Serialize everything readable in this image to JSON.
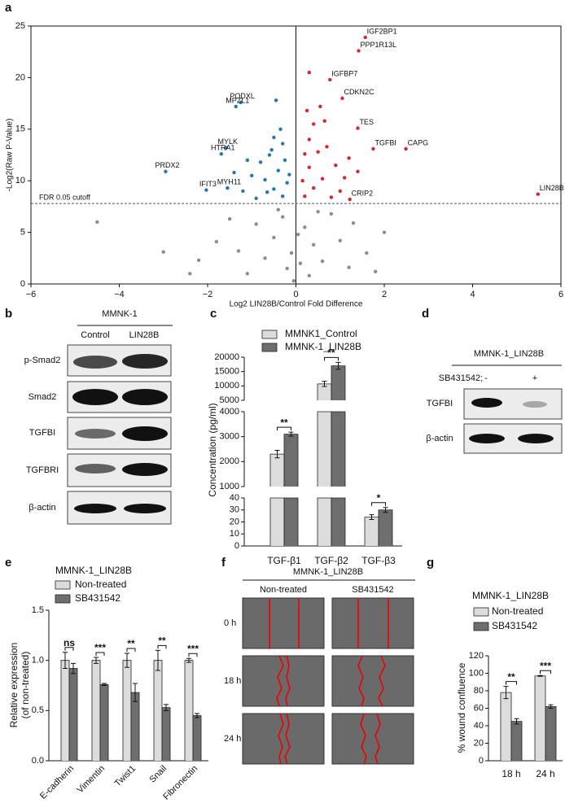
{
  "panel_labels": [
    "a",
    "b",
    "c",
    "d",
    "e",
    "f",
    "g"
  ],
  "western_b": {
    "title": "MMNK-1",
    "lanes": [
      "Control",
      "LIN28B"
    ],
    "rows": [
      "p-Smad2",
      "Smad2",
      "TGFBI",
      "TGFBRI",
      "β-actin"
    ]
  },
  "western_d": {
    "title": "MMNK-1_LIN28B",
    "treatment": "SB431542;",
    "lanes": [
      "-",
      "+"
    ],
    "rows": [
      "TGFBI",
      "β-actin"
    ]
  },
  "wound_f": {
    "title": "MMNK-1_LIN28B",
    "columns": [
      "Non-treated",
      "SB431542"
    ],
    "rows": [
      "0 h",
      "18 h",
      "24 h"
    ]
  },
  "chart_data": [
    {
      "type": "scatter",
      "xlabel": "Log2 LIN28B/Control Fold Difference",
      "ylabel": "-Log2(Raw P-Value)",
      "xlim": [
        -6,
        6
      ],
      "ylim": [
        0,
        25
      ],
      "xticks": [
        {
          "value": -6,
          "label": "−6"
        },
        {
          "value": -4,
          "label": "−4"
        },
        {
          "value": -2,
          "label": "−2"
        },
        0,
        2,
        4,
        6
      ],
      "yticks": [
        0,
        5,
        10,
        15,
        20,
        25
      ],
      "cutoff": {
        "value": 7.8,
        "label": "FDR 0.05 cutoff"
      },
      "series": [
        {
          "color": "#8c8c8c",
          "x": [
            -4.5,
            -2.4,
            -2.2,
            -3.0,
            1.8,
            1.6,
            -1.3,
            1.0,
            -0.3,
            0.2,
            -0.1,
            0.1,
            -0.5,
            0.4,
            -0.2,
            0.3,
            -0.7,
            0.6,
            -0.9,
            0.8,
            -0.4,
            0.5,
            -1.5,
            1.3,
            -0.05,
            0.05,
            -1.1,
            1.2,
            -1.8,
            2.0
          ],
          "values": [
            6.0,
            1.0,
            2.3,
            3.1,
            1.2,
            3.0,
            3.2,
            4.2,
            6.5,
            5.5,
            3.0,
            2.0,
            4.5,
            3.8,
            1.5,
            0.8,
            2.5,
            2.2,
            5.8,
            6.8,
            7.2,
            7.0,
            6.3,
            5.9,
            0.3,
            4.8,
            1.0,
            1.6,
            4.1,
            5.0
          ],
          "point_labels": null
        },
        {
          "color": "#1f77b4",
          "x": [
            -1.25,
            -1.36,
            -1.58,
            -1.69,
            -2.95,
            -2.03,
            -1.55,
            -0.3,
            -0.5,
            -0.7,
            -0.4,
            -0.9,
            -0.2,
            -0.6,
            -0.3,
            -0.8,
            -1.0,
            -0.5,
            -0.35,
            -0.45,
            -1.1,
            -0.25,
            -1.2,
            -0.65,
            -0.15,
            -1.4,
            -0.55
          ],
          "values": [
            17.6,
            17.2,
            13.2,
            12.6,
            10.9,
            9.1,
            9.3,
            8.5,
            9.2,
            10.1,
            11.0,
            8.3,
            9.8,
            12.5,
            13.6,
            11.8,
            10.5,
            14.2,
            15.0,
            17.8,
            12.0,
            12.0,
            9.0,
            8.9,
            10.6,
            10.8,
            13.0
          ],
          "point_labels": [
            "PODXL",
            "MPZL1",
            "MYLK",
            "HTRA1",
            "PRDX2",
            "IFIT3",
            "MYH11",
            null,
            null,
            null,
            null,
            null,
            null,
            null,
            null,
            null,
            null,
            null,
            null,
            null,
            null,
            null,
            null,
            null,
            null,
            null,
            null
          ]
        },
        {
          "color": "#d62728",
          "x": [
            1.57,
            1.42,
            0.77,
            1.05,
            1.4,
            1.75,
            2.49,
            5.48,
            1.22,
            0.2,
            0.4,
            0.6,
            0.3,
            0.8,
            0.15,
            0.5,
            0.3,
            0.9,
            1.1,
            0.4,
            0.25,
            0.3,
            0.7,
            1.2,
            0.55,
            1.0,
            0.2,
            0.65,
            1.4
          ],
          "values": [
            23.9,
            22.6,
            19.8,
            18.0,
            15.1,
            13.1,
            13.1,
            8.7,
            8.2,
            8.5,
            9.3,
            10.2,
            11.3,
            8.4,
            10.0,
            12.8,
            14.0,
            11.5,
            10.3,
            15.5,
            16.8,
            20.5,
            13.3,
            12.2,
            17.2,
            9.0,
            12.6,
            15.8,
            10.9
          ],
          "point_labels": [
            "IGF2BP1",
            "PPP1R13L",
            "IGFBP7",
            "CDKN2C",
            "TES",
            "TGFBI",
            "CAPG",
            "LIN28B",
            "CRIP2",
            null,
            null,
            null,
            null,
            null,
            null,
            null,
            null,
            null,
            null,
            null,
            null,
            null,
            null,
            null,
            null,
            null,
            null,
            null,
            null
          ]
        }
      ]
    },
    {
      "type": "bar",
      "ylabel": "Concentration (pg/ml)",
      "categories": [
        "TGF-β1",
        "TGF-β2",
        "TGF-β3"
      ],
      "y_segments": [
        {
          "ylim": [
            0,
            40
          ],
          "yticks": [
            0,
            10,
            20,
            30,
            40
          ]
        },
        {
          "ylim": [
            1000,
            4000
          ],
          "yticks": [
            1000,
            2000,
            3000,
            4000
          ]
        },
        {
          "ylim": [
            5000,
            20000
          ],
          "yticks": [
            5000,
            10000,
            15000,
            20000
          ]
        }
      ],
      "series": [
        {
          "name": "MMNK1_Control",
          "color": "#dcdcdc",
          "values": [
            2300,
            10700,
            24
          ],
          "errors": [
            150,
            900,
            2
          ]
        },
        {
          "name": "MMNK-1_LIN28B",
          "color": "#6e6e6e",
          "values": [
            3100,
            17000,
            30
          ],
          "errors": [
            80,
            1200,
            2
          ]
        }
      ],
      "significance": [
        "**",
        "**",
        "*"
      ]
    },
    {
      "type": "bar",
      "ylabel": [
        "Relative expression",
        "(of non-treated)"
      ],
      "legend_title": "MMNK-1_LIN28B",
      "categories": [
        "E-cadherin",
        "Vimentin",
        "Twist1",
        "Snail",
        "Fibronectin"
      ],
      "ylim": [
        0,
        1.5
      ],
      "yticks": [
        {
          "value": 0,
          "label": "0.0"
        },
        {
          "value": 0.5,
          "label": "0.5"
        },
        {
          "value": 1,
          "label": "1.0"
        },
        {
          "value": 1.5,
          "label": "1.5"
        }
      ],
      "series": [
        {
          "name": "Non-treated",
          "color": "#dcdcdc",
          "values": [
            1.0,
            1.0,
            1.0,
            1.0,
            1.0
          ],
          "errors": [
            0.08,
            0.03,
            0.07,
            0.1,
            0.02
          ]
        },
        {
          "name": "SB431542",
          "color": "#6e6e6e",
          "values": [
            0.92,
            0.76,
            0.68,
            0.53,
            0.45
          ],
          "errors": [
            0.05,
            0.01,
            0.09,
            0.03,
            0.02
          ]
        }
      ],
      "significance": [
        "ns",
        "***",
        "**",
        "**",
        "***"
      ]
    },
    {
      "type": "bar",
      "ylabel": "% wound confluence",
      "legend_title": "MMNK-1_LIN28B",
      "categories": [
        "18 h",
        "24 h"
      ],
      "ylim": [
        0,
        120
      ],
      "yticks": [
        0,
        20,
        40,
        60,
        80,
        100,
        120
      ],
      "series": [
        {
          "name": "Non-treated",
          "color": "#dcdcdc",
          "values": [
            78,
            97
          ],
          "errors": [
            7,
            0.5
          ]
        },
        {
          "name": "SB431542",
          "color": "#6e6e6e",
          "values": [
            45,
            62
          ],
          "errors": [
            3,
            2
          ]
        }
      ],
      "significance": [
        "**",
        "***"
      ]
    }
  ]
}
